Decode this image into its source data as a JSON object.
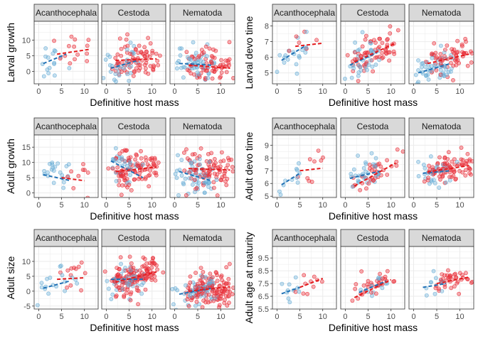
{
  "colors": {
    "blue_points": "#6BAED6",
    "red_points": "#E8303A",
    "blue_line": "#2171B5",
    "red_line": "#E31A1C",
    "strip_fill": "#D9D9D9",
    "grid": "#EBEBEB"
  },
  "chart_data": [
    {
      "type": "scatter",
      "ylabel": "Larval growth",
      "xlabel": "Definitive host mass",
      "xlim": [
        -1,
        13
      ],
      "ylim": [
        -4,
        16
      ],
      "xticks": [
        0,
        5,
        10
      ],
      "yticks": [
        0,
        5,
        10
      ],
      "facets": [
        "Acanthocephala",
        "Cestoda",
        "Nematoda"
      ],
      "spread": 3.0,
      "n": [
        30,
        110,
        120
      ],
      "redshare": [
        0.4,
        0.75,
        0.6
      ],
      "fits": [
        {
          "blue": [
            [
              1,
              2.5
            ],
            [
              6,
              5.5
            ]
          ],
          "red": [
            [
              4,
              5.5
            ],
            [
              11,
              7.0
            ]
          ]
        },
        {
          "blue": [
            [
              1,
              1.0
            ],
            [
              7,
              3.5
            ]
          ],
          "red": [
            [
              2,
              3.5
            ],
            [
              11,
              4.0
            ]
          ]
        },
        {
          "blue": [
            [
              1,
              2.5
            ],
            [
              8,
              2.0
            ]
          ],
          "red": [
            [
              3,
              2.0
            ],
            [
              12,
              1.0
            ]
          ]
        }
      ]
    },
    {
      "type": "scatter",
      "ylabel": "Larval devo time",
      "xlabel": "Definitive host mass",
      "xlim": [
        -1,
        13
      ],
      "ylim": [
        4.3,
        8.3
      ],
      "xticks": [
        0,
        5,
        10
      ],
      "yticks": [
        5,
        6,
        7,
        8
      ],
      "facets": [
        "Acanthocephala",
        "Cestoda",
        "Nematoda"
      ],
      "spread": 0.55,
      "n": [
        25,
        100,
        110
      ],
      "redshare": [
        0.4,
        0.7,
        0.6
      ],
      "fits": [
        {
          "blue": [
            [
              1,
              5.8
            ],
            [
              6,
              6.7
            ]
          ],
          "red": [
            [
              4,
              6.7
            ],
            [
              10,
              6.9
            ]
          ]
        },
        {
          "blue": [
            [
              1,
              5.5
            ],
            [
              7,
              6.3
            ]
          ],
          "red": [
            [
              2,
              5.7
            ],
            [
              11,
              6.9
            ]
          ]
        },
        {
          "blue": [
            [
              1,
              5.0
            ],
            [
              8,
              5.6
            ]
          ],
          "red": [
            [
              3,
              5.6
            ],
            [
              12,
              6.2
            ]
          ]
        }
      ]
    },
    {
      "type": "scatter",
      "ylabel": "Adult growth",
      "xlabel": "Definitive host mass",
      "xlim": [
        -1,
        13
      ],
      "ylim": [
        -1.5,
        19
      ],
      "xticks": [
        0,
        5,
        10
      ],
      "yticks": [
        0,
        5,
        10,
        15
      ],
      "facets": [
        "Acanthocephala",
        "Cestoda",
        "Nematoda"
      ],
      "spread": 3.0,
      "n": [
        30,
        130,
        140
      ],
      "redshare": [
        0.35,
        0.7,
        0.6
      ],
      "fits": [
        {
          "blue": [
            [
              1,
              6.0
            ],
            [
              7,
              4.0
            ]
          ],
          "red": [
            [
              5,
              5.0
            ],
            [
              10,
              4.0
            ]
          ]
        },
        {
          "blue": [
            [
              1,
              10.5
            ],
            [
              8,
              5.0
            ]
          ],
          "red": [
            [
              2,
              7.0
            ],
            [
              11,
              8.5
            ]
          ]
        },
        {
          "blue": [
            [
              1,
              7.0
            ],
            [
              8,
              4.0
            ]
          ],
          "red": [
            [
              3,
              8.0
            ],
            [
              12,
              7.5
            ]
          ]
        }
      ]
    },
    {
      "type": "scatter",
      "ylabel": "Adult devo time",
      "xlabel": "Definitive host mass",
      "xlim": [
        -1,
        13
      ],
      "ylim": [
        4.9,
        9.8
      ],
      "xticks": [
        0,
        5,
        10
      ],
      "yticks": [
        5,
        6,
        7,
        8,
        9
      ],
      "facets": [
        "Acanthocephala",
        "Cestoda",
        "Nematoda"
      ],
      "spread": 0.6,
      "n": [
        20,
        70,
        110
      ],
      "redshare": [
        0.5,
        0.6,
        0.7
      ],
      "fits": [
        {
          "blue": [
            [
              1,
              5.9
            ],
            [
              5,
              6.8
            ]
          ],
          "red": [
            [
              5,
              7.0
            ],
            [
              10,
              7.2
            ]
          ]
        },
        {
          "blue": [
            [
              1,
              6.4
            ],
            [
              8,
              7.0
            ]
          ],
          "red": [
            [
              2,
              5.8
            ],
            [
              11,
              7.6
            ]
          ]
        },
        {
          "blue": [
            [
              2,
              6.8
            ],
            [
              8,
              7.0
            ]
          ],
          "red": [
            [
              3,
              6.9
            ],
            [
              12,
              7.4
            ]
          ]
        }
      ]
    },
    {
      "type": "scatter",
      "ylabel": "Adult size",
      "xlabel": "Definitive host mass",
      "xlim": [
        -1,
        13
      ],
      "ylim": [
        -6,
        15
      ],
      "xticks": [
        0,
        5,
        10
      ],
      "yticks": [
        -5,
        0,
        5,
        10
      ],
      "facets": [
        "Acanthocephala",
        "Cestoda",
        "Nematoda"
      ],
      "spread": 2.8,
      "n": [
        30,
        170,
        190
      ],
      "redshare": [
        0.4,
        0.75,
        0.65
      ],
      "fits": [
        {
          "blue": [
            [
              1,
              1.0
            ],
            [
              7,
              3.5
            ]
          ],
          "red": [
            [
              4,
              4.0
            ],
            [
              10,
              4.5
            ]
          ]
        },
        {
          "blue": [
            [
              1,
              4.0
            ],
            [
              8,
              4.0
            ]
          ],
          "red": [
            [
              2,
              3.0
            ],
            [
              11,
              6.5
            ]
          ]
        },
        {
          "blue": [
            [
              1,
              -1.0
            ],
            [
              8,
              1.0
            ]
          ],
          "red": [
            [
              3,
              0.0
            ],
            [
              12,
              1.5
            ]
          ]
        }
      ]
    },
    {
      "type": "scatter",
      "ylabel": "Adult age at maturity",
      "xlabel": "Definitive host mass",
      "xlim": [
        -1,
        13
      ],
      "ylim": [
        5.5,
        10.4
      ],
      "xticks": [
        0,
        5,
        10
      ],
      "yticks": [
        5.5,
        6.5,
        7.5,
        8.5,
        9.5
      ],
      "facets": [
        "Acanthocephala",
        "Cestoda",
        "Nematoda"
      ],
      "spread": 0.5,
      "n": [
        20,
        45,
        50
      ],
      "redshare": [
        0.5,
        0.6,
        0.75
      ],
      "fits": [
        {
          "blue": [
            [
              1,
              6.7
            ],
            [
              5,
              7.2
            ]
          ],
          "red": [
            [
              5,
              7.2
            ],
            [
              10,
              7.9
            ]
          ]
        },
        {
          "blue": [
            [
              3,
              6.8
            ],
            [
              9,
              7.7
            ]
          ],
          "red": [
            [
              2,
              6.4
            ],
            [
              10,
              7.8
            ]
          ]
        },
        {
          "blue": [
            [
              2,
              7.2
            ],
            [
              7,
              7.5
            ]
          ],
          "red": [
            [
              5,
              7.5
            ],
            [
              12,
              8.0
            ]
          ]
        }
      ]
    }
  ]
}
